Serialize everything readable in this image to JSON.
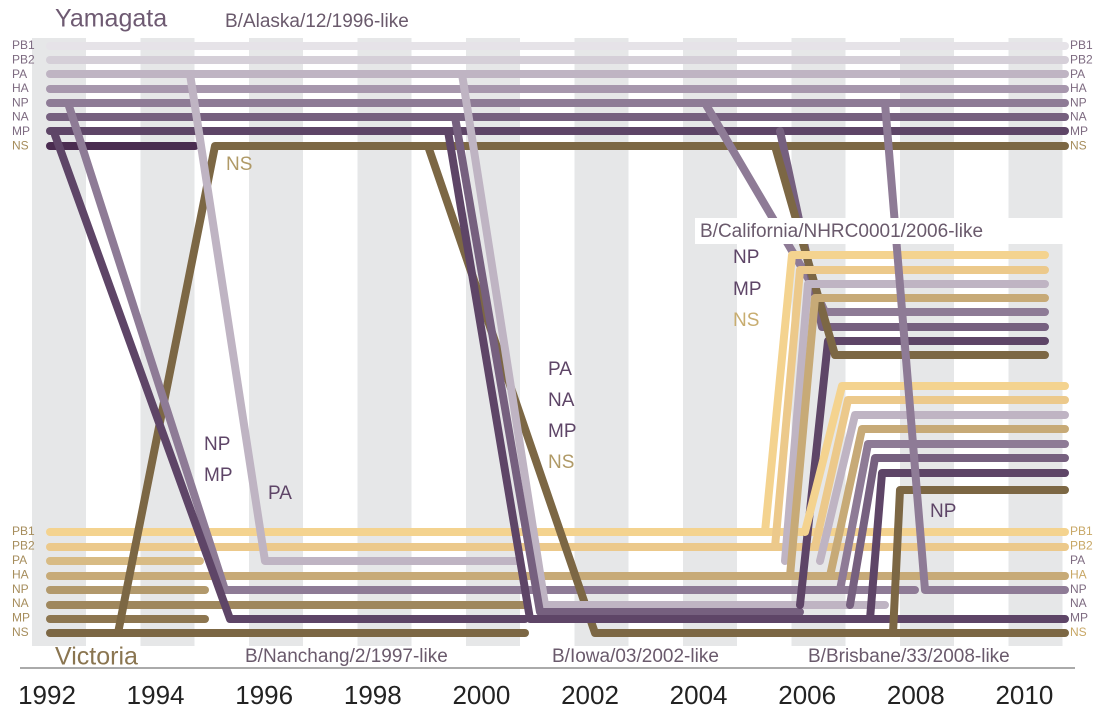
{
  "yamagata": {
    "title": "Yamagata",
    "lineage": "B/Alaska/12/1996-like"
  },
  "victoria": {
    "title": "Victoria",
    "lineages": [
      "B/Nanchang/2/1997-like",
      "B/Iowa/03/2002-like",
      "B/Brisbane/33/2008-like"
    ]
  },
  "california": "B/California/NHRC0001/2006-like",
  "segments": [
    "PB1",
    "PB2",
    "PA",
    "HA",
    "NP",
    "NA",
    "MP",
    "NS"
  ],
  "annotations": {
    "nanchang_ns": "NS",
    "nanchang": [
      "NP",
      "MP",
      "PA"
    ],
    "iowa": [
      "PA",
      "NA",
      "MP",
      "NS"
    ],
    "california": [
      "NP",
      "MP",
      "NS"
    ],
    "brisbane_np": "NP"
  },
  "years": [
    "1992",
    "1994",
    "1996",
    "1998",
    "2000",
    "2002",
    "2004",
    "2006",
    "2008",
    "2010"
  ]
}
